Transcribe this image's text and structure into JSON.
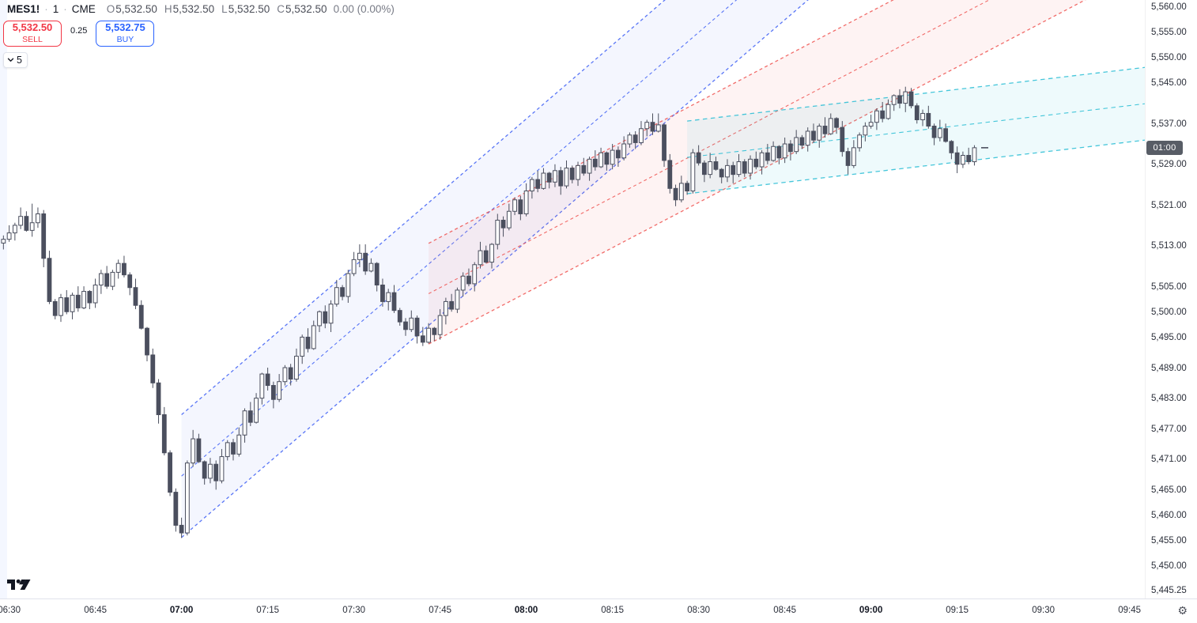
{
  "header": {
    "symbol": "MES1!",
    "sep": "·",
    "interval": "1",
    "exchange": "CME",
    "ohlc": [
      {
        "k": "O",
        "v": "5,532.50"
      },
      {
        "k": "H",
        "v": "5,532.50"
      },
      {
        "k": "L",
        "v": "5,532.50"
      },
      {
        "k": "C",
        "v": "5,532.50"
      }
    ],
    "change": "0.00 (0.00%)"
  },
  "trade_panel": {
    "sell_price": "5,532.50",
    "sell_label": "SELL",
    "spread": "0.25",
    "buy_price": "5,532.75",
    "buy_label": "BUY",
    "quantity": "5"
  },
  "price_axis": {
    "countdown": "01:00",
    "countdown_price": 5532.5,
    "ticks": [
      {
        "label": "5,560.00",
        "price": 5560
      },
      {
        "label": "5,555.00",
        "price": 5555
      },
      {
        "label": "5,550.00",
        "price": 5550
      },
      {
        "label": "5,545.00",
        "price": 5545
      },
      {
        "label": "5,537.00",
        "price": 5537
      },
      {
        "label": "5,529.00",
        "price": 5529
      },
      {
        "label": "5,521.00",
        "price": 5521
      },
      {
        "label": "5,513.00",
        "price": 5513
      },
      {
        "label": "5,505.00",
        "price": 5505
      },
      {
        "label": "5,500.00",
        "price": 5500
      },
      {
        "label": "5,495.00",
        "price": 5495
      },
      {
        "label": "5,489.00",
        "price": 5489
      },
      {
        "label": "5,483.00",
        "price": 5483
      },
      {
        "label": "5,477.00",
        "price": 5477
      },
      {
        "label": "5,471.00",
        "price": 5471
      },
      {
        "label": "5,465.00",
        "price": 5465
      },
      {
        "label": "5,460.00",
        "price": 5460
      },
      {
        "label": "5,455.00",
        "price": 5455
      },
      {
        "label": "5,450.00",
        "price": 5450
      },
      {
        "label": "5,445.25",
        "price": 5445.25
      }
    ]
  },
  "time_axis": {
    "ticks": [
      {
        "label": "06:30",
        "min": 1,
        "bold": false
      },
      {
        "label": "06:45",
        "min": 16,
        "bold": false
      },
      {
        "label": "07:00",
        "min": 31,
        "bold": true
      },
      {
        "label": "07:15",
        "min": 46,
        "bold": false
      },
      {
        "label": "07:30",
        "min": 61,
        "bold": false
      },
      {
        "label": "07:45",
        "min": 76,
        "bold": false
      },
      {
        "label": "08:00",
        "min": 91,
        "bold": true
      },
      {
        "label": "08:15",
        "min": 106,
        "bold": false
      },
      {
        "label": "08:30",
        "min": 121,
        "bold": false
      },
      {
        "label": "08:45",
        "min": 136,
        "bold": false
      },
      {
        "label": "09:00",
        "min": 151,
        "bold": true
      },
      {
        "label": "09:15",
        "min": 166,
        "bold": false
      },
      {
        "label": "09:30",
        "min": 181,
        "bold": false
      },
      {
        "label": "09:45",
        "min": 196,
        "bold": false
      }
    ]
  },
  "colors": {
    "sell_accent": "#f23645",
    "buy_accent": "#2962ff",
    "candle": "#4b4f5e",
    "candle_up_fill": "#ffffff",
    "channel_blue": "#3d5ff5",
    "channel_blue_fill": "rgba(61,95,245,0.055)",
    "channel_red": "#ef5350",
    "channel_red_fill": "rgba(239,83,80,0.07)",
    "channel_cyan": "#27bdd4",
    "channel_cyan_fill": "rgba(39,189,212,0.08)",
    "session_band_fill": "rgba(41,98,255,0.05)",
    "badge_bg": "#585d66",
    "axis_text": "#2a2e39"
  },
  "chart_data": {
    "type": "candlestick",
    "title": "MES1! 1-minute, CME",
    "interval_min": 1,
    "start_time": "06:29",
    "last_price": 5532.5,
    "visible_price_range": [
      5445.25,
      5560.0
    ],
    "visible_time_range": [
      "06:29",
      "09:48"
    ],
    "grid": false,
    "channels": [
      {
        "name": "regression-channel-blue",
        "color_key": "channel_blue",
        "fill_key": "channel_blue_fill",
        "start_min": 31,
        "end_min": 200,
        "upper_start": 5480.0,
        "lower_start": 5455.85,
        "slope_pt_per_min": 0.9696,
        "dash": "4 3.5"
      },
      {
        "name": "regression-channel-red",
        "color_key": "channel_red",
        "fill_key": "channel_red_fill",
        "start_min": 74,
        "end_min": 200,
        "upper_start": 5513.7,
        "lower_start": 5493.9,
        "slope_pt_per_min": 0.5921,
        "dash": "4 3.5"
      },
      {
        "name": "regression-channel-cyan",
        "color_key": "channel_cyan",
        "fill_key": "channel_cyan_fill",
        "start_min": 119,
        "end_min": 199,
        "upper_start": 5537.75,
        "lower_start": 5523.45,
        "slope_pt_per_min": 0.1324,
        "dash": "5.5 4.5"
      }
    ],
    "ohlc": [
      [
        5513.75,
        5515.25,
        5512.5,
        5514.5
      ],
      [
        5514.5,
        5517.25,
        5514.0,
        5515.75
      ],
      [
        5515.75,
        5517.75,
        5514.25,
        5517.25
      ],
      [
        5517.25,
        5520.75,
        5516.5,
        5519.0
      ],
      [
        5519.0,
        5520.0,
        5516.0,
        5516.25
      ],
      [
        5516.25,
        5521.5,
        5515.0,
        5517.75
      ],
      [
        5517.75,
        5520.75,
        5516.75,
        5519.5
      ],
      [
        5519.5,
        5520.25,
        5509.0,
        5510.75
      ],
      [
        5510.75,
        5512.25,
        5501.75,
        5502.25
      ],
      [
        5502.25,
        5502.75,
        5498.75,
        5499.5
      ],
      [
        5499.5,
        5503.75,
        5498.25,
        5503.0
      ],
      [
        5503.0,
        5504.5,
        5499.75,
        5500.25
      ],
      [
        5500.25,
        5504.0,
        5498.75,
        5503.5
      ],
      [
        5503.5,
        5505.25,
        5500.25,
        5501.0
      ],
      [
        5501.0,
        5505.25,
        5500.75,
        5504.25
      ],
      [
        5504.25,
        5504.5,
        5500.75,
        5502.0
      ],
      [
        5502.0,
        5506.75,
        5501.0,
        5505.5
      ],
      [
        5505.5,
        5508.5,
        5503.75,
        5507.75
      ],
      [
        5507.75,
        5509.25,
        5504.75,
        5505.25
      ],
      [
        5505.25,
        5508.5,
        5504.5,
        5508.0
      ],
      [
        5508.0,
        5510.5,
        5506.75,
        5509.75
      ],
      [
        5509.75,
        5511.25,
        5507.0,
        5507.5
      ],
      [
        5507.5,
        5508.0,
        5503.5,
        5505.0
      ],
      [
        5505.0,
        5506.75,
        5500.75,
        5501.5
      ],
      [
        5501.5,
        5502.5,
        5496.75,
        5497.0
      ],
      [
        5497.0,
        5497.25,
        5490.5,
        5491.75
      ],
      [
        5491.75,
        5493.0,
        5485.25,
        5486.25
      ],
      [
        5486.25,
        5487.0,
        5478.25,
        5480.0
      ],
      [
        5480.0,
        5481.5,
        5472.0,
        5472.5
      ],
      [
        5472.5,
        5473.0,
        5464.0,
        5464.75
      ],
      [
        5464.75,
        5465.5,
        5457.0,
        5458.25
      ],
      [
        5458.25,
        5459.75,
        5455.75,
        5456.75
      ],
      [
        5456.75,
        5471.0,
        5456.25,
        5470.5
      ],
      [
        5470.5,
        5477.0,
        5469.75,
        5475.25
      ],
      [
        5475.25,
        5476.25,
        5470.5,
        5470.75
      ],
      [
        5470.75,
        5471.0,
        5466.25,
        5467.5
      ],
      [
        5467.5,
        5471.5,
        5466.5,
        5470.25
      ],
      [
        5470.25,
        5471.0,
        5465.25,
        5467.0
      ],
      [
        5467.0,
        5473.25,
        5466.5,
        5471.75
      ],
      [
        5471.75,
        5475.0,
        5471.0,
        5474.5
      ],
      [
        5474.5,
        5475.25,
        5471.0,
        5472.25
      ],
      [
        5472.25,
        5477.5,
        5471.75,
        5476.0
      ],
      [
        5476.0,
        5481.25,
        5474.5,
        5480.75
      ],
      [
        5480.75,
        5482.5,
        5477.75,
        5478.5
      ],
      [
        5478.5,
        5484.25,
        5478.25,
        5483.25
      ],
      [
        5483.25,
        5488.25,
        5482.0,
        5488.0
      ],
      [
        5488.0,
        5489.25,
        5484.75,
        5485.75
      ],
      [
        5485.75,
        5486.5,
        5481.25,
        5483.0
      ],
      [
        5483.0,
        5488.0,
        5482.5,
        5486.5
      ],
      [
        5486.5,
        5489.75,
        5485.75,
        5489.25
      ],
      [
        5489.25,
        5490.0,
        5485.75,
        5487.0
      ],
      [
        5487.0,
        5493.0,
        5486.5,
        5491.5
      ],
      [
        5491.5,
        5495.75,
        5490.0,
        5495.25
      ],
      [
        5495.25,
        5497.0,
        5492.25,
        5493.0
      ],
      [
        5493.0,
        5498.5,
        5492.75,
        5497.5
      ],
      [
        5497.5,
        5500.5,
        5496.25,
        5500.25
      ],
      [
        5500.25,
        5501.5,
        5497.0,
        5498.0
      ],
      [
        5498.0,
        5502.5,
        5496.25,
        5501.75
      ],
      [
        5501.75,
        5506.5,
        5501.25,
        5505.0
      ],
      [
        5505.0,
        5505.5,
        5502.5,
        5503.25
      ],
      [
        5503.25,
        5508.5,
        5502.0,
        5507.75
      ],
      [
        5507.75,
        5512.0,
        5507.25,
        5510.5
      ],
      [
        5510.5,
        5513.5,
        5509.0,
        5511.75
      ],
      [
        5511.75,
        5513.5,
        5507.5,
        5508.25
      ],
      [
        5508.25,
        5510.75,
        5508.0,
        5509.75
      ],
      [
        5509.75,
        5510.0,
        5504.25,
        5505.5
      ],
      [
        5505.5,
        5506.75,
        5501.25,
        5502.25
      ],
      [
        5502.25,
        5504.75,
        5500.5,
        5504.0
      ],
      [
        5504.0,
        5505.5,
        5500.0,
        5500.5
      ],
      [
        5500.5,
        5501.0,
        5497.5,
        5498.25
      ],
      [
        5498.25,
        5499.0,
        5495.5,
        5496.75
      ],
      [
        5496.75,
        5500.5,
        5496.25,
        5499.0
      ],
      [
        5499.0,
        5499.5,
        5494.0,
        5495.5
      ],
      [
        5495.5,
        5497.25,
        5493.5,
        5494.25
      ],
      [
        5494.25,
        5498.0,
        5494.0,
        5497.0
      ],
      [
        5497.0,
        5497.25,
        5494.5,
        5495.75
      ],
      [
        5495.75,
        5500.75,
        5494.75,
        5499.5
      ],
      [
        5499.5,
        5503.0,
        5497.75,
        5502.25
      ],
      [
        5502.25,
        5503.75,
        5500.25,
        5500.75
      ],
      [
        5500.75,
        5505.0,
        5500.0,
        5504.5
      ],
      [
        5504.5,
        5508.0,
        5503.25,
        5507.25
      ],
      [
        5507.25,
        5508.75,
        5505.25,
        5505.75
      ],
      [
        5505.75,
        5510.0,
        5504.25,
        5509.5
      ],
      [
        5509.5,
        5514.0,
        5508.75,
        5512.25
      ],
      [
        5512.25,
        5513.25,
        5509.75,
        5510.0
      ],
      [
        5510.0,
        5513.75,
        5508.75,
        5513.5
      ],
      [
        5513.5,
        5519.5,
        5512.5,
        5518.25
      ],
      [
        5518.25,
        5519.0,
        5515.0,
        5516.75
      ],
      [
        5516.75,
        5521.5,
        5516.25,
        5520.0
      ],
      [
        5520.0,
        5522.75,
        5519.25,
        5522.25
      ],
      [
        5522.25,
        5523.0,
        5518.25,
        5519.5
      ],
      [
        5519.5,
        5525.5,
        5519.0,
        5524.0
      ],
      [
        5524.0,
        5526.75,
        5522.5,
        5526.25
      ],
      [
        5526.25,
        5528.0,
        5523.75,
        5524.5
      ],
      [
        5524.5,
        5528.5,
        5524.25,
        5527.5
      ],
      [
        5527.5,
        5527.75,
        5524.5,
        5525.75
      ],
      [
        5525.75,
        5529.25,
        5524.75,
        5528.0
      ],
      [
        5528.0,
        5528.75,
        5523.25,
        5525.0
      ],
      [
        5525.0,
        5530.0,
        5524.5,
        5528.5
      ],
      [
        5528.5,
        5529.0,
        5525.5,
        5526.25
      ],
      [
        5526.25,
        5529.75,
        5525.0,
        5529.0
      ],
      [
        5529.0,
        5530.5,
        5527.0,
        5527.5
      ],
      [
        5527.5,
        5530.75,
        5526.0,
        5530.25
      ],
      [
        5530.25,
        5532.0,
        5528.0,
        5528.75
      ],
      [
        5528.75,
        5532.5,
        5528.5,
        5531.5
      ],
      [
        5531.5,
        5531.75,
        5528.0,
        5529.25
      ],
      [
        5529.25,
        5533.25,
        5528.25,
        5532.0
      ],
      [
        5532.0,
        5532.75,
        5528.75,
        5530.5
      ],
      [
        5530.5,
        5534.75,
        5530.0,
        5533.25
      ],
      [
        5533.25,
        5535.5,
        5532.5,
        5535.0
      ],
      [
        5535.0,
        5535.75,
        5532.25,
        5533.5
      ],
      [
        5533.5,
        5537.75,
        5533.0,
        5536.25
      ],
      [
        5536.25,
        5538.0,
        5534.75,
        5537.5
      ],
      [
        5537.5,
        5539.25,
        5535.0,
        5535.75
      ],
      [
        5535.75,
        5539.25,
        5535.5,
        5537.0
      ],
      [
        5537.0,
        5537.25,
        5528.75,
        5530.0
      ],
      [
        5530.0,
        5531.25,
        5523.5,
        5524.5
      ],
      [
        5524.5,
        5525.25,
        5521.0,
        5522.25
      ],
      [
        5522.25,
        5527.0,
        5521.75,
        5525.5
      ],
      [
        5525.5,
        5526.0,
        5523.25,
        5524.0
      ],
      [
        5524.0,
        5532.25,
        5523.5,
        5531.5
      ],
      [
        5531.5,
        5533.0,
        5529.0,
        5529.5
      ],
      [
        5529.5,
        5530.0,
        5525.75,
        5527.25
      ],
      [
        5527.25,
        5531.5,
        5526.5,
        5529.75
      ],
      [
        5529.75,
        5530.75,
        5528.0,
        5528.25
      ],
      [
        5528.25,
        5528.5,
        5525.5,
        5526.75
      ],
      [
        5526.75,
        5530.25,
        5525.75,
        5529.0
      ],
      [
        5529.0,
        5529.75,
        5525.5,
        5527.25
      ],
      [
        5527.25,
        5531.25,
        5526.75,
        5529.75
      ],
      [
        5529.75,
        5530.25,
        5526.75,
        5527.5
      ],
      [
        5527.5,
        5531.0,
        5526.25,
        5530.25
      ],
      [
        5530.25,
        5531.75,
        5528.25,
        5528.75
      ],
      [
        5528.75,
        5532.0,
        5527.25,
        5531.5
      ],
      [
        5531.5,
        5533.25,
        5529.25,
        5530.0
      ],
      [
        5530.0,
        5533.75,
        5529.75,
        5532.75
      ],
      [
        5532.75,
        5533.0,
        5529.25,
        5530.5
      ],
      [
        5530.5,
        5534.5,
        5529.5,
        5533.25
      ],
      [
        5533.25,
        5534.0,
        5530.0,
        5531.75
      ],
      [
        5531.75,
        5536.0,
        5531.25,
        5534.5
      ],
      [
        5534.5,
        5535.0,
        5532.25,
        5533.0
      ],
      [
        5533.0,
        5536.5,
        5531.75,
        5535.75
      ],
      [
        5535.75,
        5537.25,
        5533.5,
        5534.0
      ],
      [
        5534.0,
        5537.25,
        5532.5,
        5536.75
      ],
      [
        5536.75,
        5538.5,
        5534.5,
        5535.25
      ],
      [
        5535.25,
        5539.25,
        5535.0,
        5538.25
      ],
      [
        5538.25,
        5538.5,
        5535.25,
        5536.5
      ],
      [
        5536.5,
        5537.75,
        5530.75,
        5531.75
      ],
      [
        5531.75,
        5532.5,
        5527.25,
        5529.0
      ],
      [
        5529.0,
        5534.0,
        5528.5,
        5532.5
      ],
      [
        5532.5,
        5535.5,
        5531.75,
        5535.0
      ],
      [
        5535.0,
        5537.5,
        5533.75,
        5536.75
      ],
      [
        5536.75,
        5539.0,
        5536.25,
        5537.5
      ],
      [
        5537.5,
        5540.25,
        5536.0,
        5539.75
      ],
      [
        5539.75,
        5541.5,
        5537.5,
        5538.25
      ],
      [
        5538.25,
        5542.0,
        5538.0,
        5541.0
      ],
      [
        5541.0,
        5543.0,
        5539.75,
        5542.75
      ],
      [
        5542.75,
        5544.0,
        5540.25,
        5541.25
      ],
      [
        5541.25,
        5544.5,
        5539.5,
        5543.5
      ],
      [
        5543.5,
        5544.25,
        5540.25,
        5540.75
      ],
      [
        5540.75,
        5541.25,
        5537.25,
        5538.0
      ],
      [
        5538.0,
        5540.0,
        5536.75,
        5539.25
      ],
      [
        5539.25,
        5540.75,
        5536.25,
        5536.75
      ],
      [
        5536.75,
        5537.25,
        5533.0,
        5534.5
      ],
      [
        5534.5,
        5538.0,
        5533.75,
        5536.25
      ],
      [
        5536.25,
        5537.25,
        5533.5,
        5533.75
      ],
      [
        5533.75,
        5534.0,
        5530.25,
        5531.5
      ],
      [
        5531.5,
        5532.75,
        5527.5,
        5529.25
      ],
      [
        5529.25,
        5531.75,
        5528.5,
        5531.0
      ],
      [
        5531.0,
        5532.5,
        5529.25,
        5529.75
      ],
      [
        5529.75,
        5533.0,
        5529.0,
        5532.5
      ]
    ]
  }
}
